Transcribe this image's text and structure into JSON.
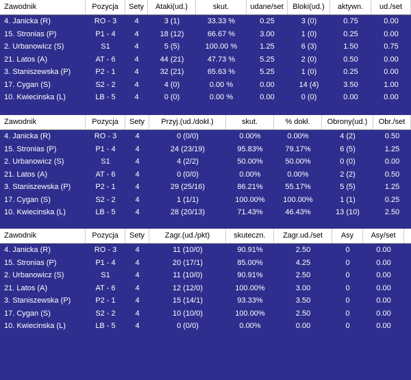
{
  "tables": [
    {
      "headers": [
        "Zawodnik",
        "Pozycja",
        "Sety",
        "Ataki(ud.)",
        "skut.",
        "udane/set",
        "Bloki(ud.)",
        "aktywn.",
        "ud./set"
      ],
      "rows": [
        [
          "4. Janicka (R)",
          "RO - 3",
          "4",
          "3 (1)",
          "33.33 %",
          "0.25",
          "3 (0)",
          "0.75",
          "0.00"
        ],
        [
          "15. Stronias (P)",
          "P1 - 4",
          "4",
          "18 (12)",
          "66.67 %",
          "3.00",
          "1 (0)",
          "0.25",
          "0.00"
        ],
        [
          "2. Urbanowicz (S)",
          "S1",
          "4",
          "5 (5)",
          "100.00 %",
          "1.25",
          "6 (3)",
          "1.50",
          "0.75"
        ],
        [
          "21. Latos (A)",
          "AT - 6",
          "4",
          "44 (21)",
          "47.73 %",
          "5.25",
          "2 (0)",
          "0.50",
          "0.00"
        ],
        [
          "3. Staniszewska (P)",
          "P2 - 1",
          "4",
          "32 (21)",
          "65.63 %",
          "5.25",
          "1 (0)",
          "0.25",
          "0.00"
        ],
        [
          "17. Cygan (S)",
          "S2 - 2",
          "4",
          "4 (0)",
          "0.00 %",
          "0.00",
          "14 (4)",
          "3.50",
          "1.00"
        ],
        [
          "10. Kwiecinska (L)",
          "LB - 5",
          "4",
          "0 (0)",
          "0.00 %",
          "0.00",
          "0 (0)",
          "0.00",
          "0.00"
        ]
      ]
    },
    {
      "headers": [
        "Zawodnik",
        "Pozycja",
        "Sety",
        "Przyj.(ud./dokł.)",
        "skut.",
        "% dokł.",
        "Obrony(ud.)",
        "Obr./set"
      ],
      "rows": [
        [
          "4. Janicka (R)",
          "RO - 3",
          "4",
          "0 (0/0)",
          "0.00%",
          "0.00%",
          "4 (2)",
          "0.50"
        ],
        [
          "15. Stronias (P)",
          "P1 - 4",
          "4",
          "24 (23/19)",
          "95.83%",
          "79.17%",
          "6 (5)",
          "1.25"
        ],
        [
          "2. Urbanowicz (S)",
          "S1",
          "4",
          "4 (2/2)",
          "50.00%",
          "50.00%",
          "0 (0)",
          "0.00"
        ],
        [
          "21. Latos (A)",
          "AT - 6",
          "4",
          "0 (0/0)",
          "0.00%",
          "0.00%",
          "2 (2)",
          "0.50"
        ],
        [
          "3. Staniszewska (P)",
          "P2 - 1",
          "4",
          "29 (25/16)",
          "86.21%",
          "55.17%",
          "5 (5)",
          "1.25"
        ],
        [
          "17. Cygan (S)",
          "S2 - 2",
          "4",
          "1 (1/1)",
          "100.00%",
          "100.00%",
          "1 (1)",
          "0.25"
        ],
        [
          "10. Kwiecinska (L)",
          "LB - 5",
          "4",
          "28 (20/13)",
          "71.43%",
          "46.43%",
          "13 (10)",
          "2.50"
        ]
      ]
    },
    {
      "headers": [
        "Zawodnik",
        "Pozycja",
        "Sety",
        "Zagr.(ud./pkt)",
        "skuteczn.",
        "Zagr.ud./set",
        "Asy",
        "Asy/set"
      ],
      "rows": [
        [
          "4. Janicka (R)",
          "RO - 3",
          "4",
          "11 (10/0)",
          "90.91%",
          "2.50",
          "0",
          "0.00"
        ],
        [
          "15. Stronias (P)",
          "P1 - 4",
          "4",
          "20 (17/1)",
          "85.00%",
          "4.25",
          "0",
          "0.00"
        ],
        [
          "2. Urbanowicz (S)",
          "S1",
          "4",
          "11 (10/0)",
          "90.91%",
          "2.50",
          "0",
          "0.00"
        ],
        [
          "21. Latos (A)",
          "AT - 6",
          "4",
          "12 (12/0)",
          "100.00%",
          "3.00",
          "0",
          "0.00"
        ],
        [
          "3. Staniszewska (P)",
          "P2 - 1",
          "4",
          "15 (14/1)",
          "93.33%",
          "3.50",
          "0",
          "0.00"
        ],
        [
          "17. Cygan (S)",
          "S2 - 2",
          "4",
          "10 (10/0)",
          "100.00%",
          "2.50",
          "0",
          "0.00"
        ],
        [
          "10. Kwiecinska (L)",
          "LB - 5",
          "4",
          "0 (0/0)",
          "0.00%",
          "0.00",
          "0",
          "0.00"
        ]
      ]
    }
  ]
}
